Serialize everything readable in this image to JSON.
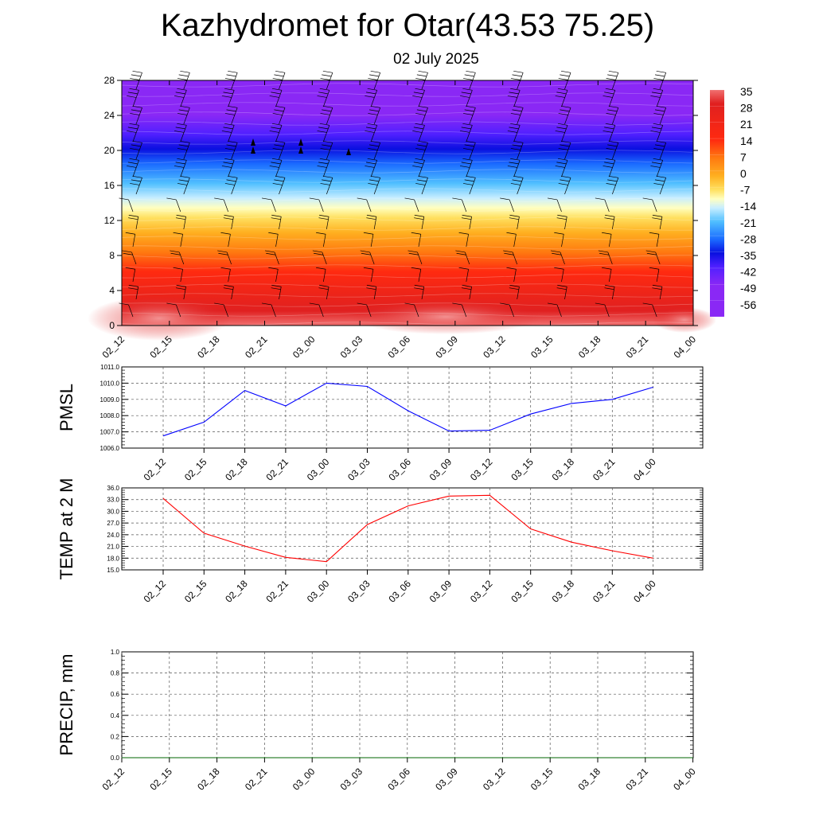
{
  "title": "Kazhydromet for Otar(43.53 75.25)",
  "subtitle": "02 July 2025",
  "time_labels": [
    "02_12",
    "02_15",
    "02_18",
    "02_21",
    "03_00",
    "03_03",
    "03_06",
    "03_09",
    "03_12",
    "03_15",
    "03_18",
    "03_21",
    "04_00"
  ],
  "colorbar": {
    "labels": [
      "35",
      "28",
      "21",
      "14",
      "7",
      "0",
      "-7",
      "-14",
      "-21",
      "-28",
      "-35",
      "-42",
      "-49",
      "-56"
    ],
    "colors": [
      "#f08a8a",
      "#e02a2a",
      "#ff5a1a",
      "#ff9a1a",
      "#ffd23a",
      "#ffffc8",
      "#b8e8ff",
      "#40b8ff",
      "#1a7aff",
      "#1a3aff",
      "#3a1aff",
      "#8a2af5"
    ]
  },
  "chart_data": [
    {
      "type": "heatmap",
      "name": "upper-air-temperature-wind",
      "x": [
        "02_12",
        "02_15",
        "02_18",
        "02_21",
        "03_00",
        "03_03",
        "03_06",
        "03_09",
        "03_12",
        "03_15",
        "03_18",
        "03_21",
        "04_00"
      ],
      "ylim": [
        0,
        28
      ],
      "yticks": [
        0,
        4,
        8,
        12,
        16,
        20,
        24,
        28
      ],
      "levels": [
        0,
        2,
        4,
        6,
        8,
        10,
        12,
        14,
        16,
        18,
        20,
        22,
        24,
        26,
        28
      ],
      "values": [
        [
          30,
          31,
          29,
          27,
          28,
          32,
          34,
          35,
          34,
          32,
          30,
          29,
          29
        ],
        [
          25,
          26,
          25,
          24,
          24,
          26,
          27,
          27,
          27,
          26,
          25,
          25,
          25
        ],
        [
          18,
          18,
          18,
          17,
          17,
          18,
          19,
          19,
          19,
          18,
          18,
          18,
          18
        ],
        [
          13,
          13,
          13,
          13,
          13,
          13,
          13,
          13,
          13,
          13,
          13,
          13,
          13
        ],
        [
          10,
          10,
          10,
          10,
          10,
          10,
          10,
          10,
          10,
          10,
          10,
          10,
          10
        ],
        [
          6,
          6,
          6,
          6,
          6,
          6,
          6,
          6,
          6,
          6,
          6,
          6,
          6
        ],
        [
          2,
          2,
          2,
          2,
          2,
          2,
          2,
          2,
          2,
          2,
          2,
          2,
          2
        ],
        [
          -12,
          -12,
          -12,
          -11,
          -11,
          -11,
          -11,
          -11,
          -11,
          -11,
          -11,
          -12,
          -12
        ],
        [
          -22,
          -22,
          -22,
          -21,
          -21,
          -21,
          -21,
          -21,
          -21,
          -21,
          -21,
          -22,
          -22
        ],
        [
          -32,
          -32,
          -32,
          -31,
          -31,
          -31,
          -31,
          -31,
          -31,
          -31,
          -31,
          -32,
          -32
        ],
        [
          -44,
          -44,
          -44,
          -43,
          -43,
          -43,
          -43,
          -43,
          -43,
          -43,
          -43,
          -44,
          -44
        ],
        [
          -53,
          -53,
          -53,
          -52,
          -52,
          -52,
          -52,
          -52,
          -52,
          -52,
          -52,
          -53,
          -53
        ],
        [
          -56,
          -56,
          -56,
          -56,
          -56,
          -56,
          -56,
          -56,
          -56,
          -56,
          -56,
          -56,
          -56
        ],
        [
          -58,
          -58,
          -58,
          -58,
          -58,
          -58,
          -58,
          -58,
          -58,
          -58,
          -58,
          -58,
          -58
        ],
        [
          -60,
          -60,
          -60,
          -60,
          -60,
          -60,
          -60,
          -60,
          -60,
          -60,
          -60,
          -60,
          -60
        ]
      ],
      "grid": false
    },
    {
      "type": "line",
      "ylabel": "PMSL",
      "x": [
        "02_12",
        "02_15",
        "02_18",
        "02_21",
        "03_00",
        "03_03",
        "03_06",
        "03_09",
        "03_12",
        "03_15",
        "03_18",
        "03_21",
        "04_00"
      ],
      "values": [
        1006.75,
        1007.6,
        1009.55,
        1008.6,
        1010.0,
        1009.8,
        1008.3,
        1007.05,
        1007.1,
        1008.1,
        1008.75,
        1009.0,
        1009.75
      ],
      "ylim": [
        1006.0,
        1011.0
      ],
      "yticks": [
        "1006.0",
        "1007.0",
        "1008.0",
        "1009.0",
        "1010.0",
        "1011.0"
      ],
      "color": "#0000ff",
      "grid": true
    },
    {
      "type": "line",
      "ylabel": "TEMP at 2 M",
      "x": [
        "02_12",
        "02_15",
        "02_18",
        "02_21",
        "03_00",
        "03_03",
        "03_06",
        "03_09",
        "03_12",
        "03_15",
        "03_18",
        "03_21",
        "04_00"
      ],
      "values": [
        33.3,
        24.4,
        21.1,
        18.2,
        17.1,
        26.6,
        31.4,
        33.9,
        34.1,
        25.5,
        22.1,
        19.9,
        18.0
      ],
      "ylim": [
        15.0,
        36.0
      ],
      "yticks": [
        "15.0",
        "18.0",
        "21.0",
        "24.0",
        "27.0",
        "30.0",
        "33.0",
        "36.0"
      ],
      "color": "#ff0000",
      "grid": true
    },
    {
      "type": "line",
      "ylabel": "PRECIP, mm",
      "x": [
        "02_12",
        "02_15",
        "02_18",
        "02_21",
        "03_00",
        "03_03",
        "03_06",
        "03_09",
        "03_12",
        "03_15",
        "03_18",
        "03_21",
        "04_00"
      ],
      "values": [
        0,
        0,
        0,
        0,
        0,
        0,
        0,
        0,
        0,
        0,
        0,
        0,
        0
      ],
      "ylim": [
        0.0,
        1.0
      ],
      "yticks": [
        "0.0",
        "0.2",
        "0.4",
        "0.6",
        "0.8",
        "1.0"
      ],
      "color": "#006400",
      "grid": true
    }
  ]
}
